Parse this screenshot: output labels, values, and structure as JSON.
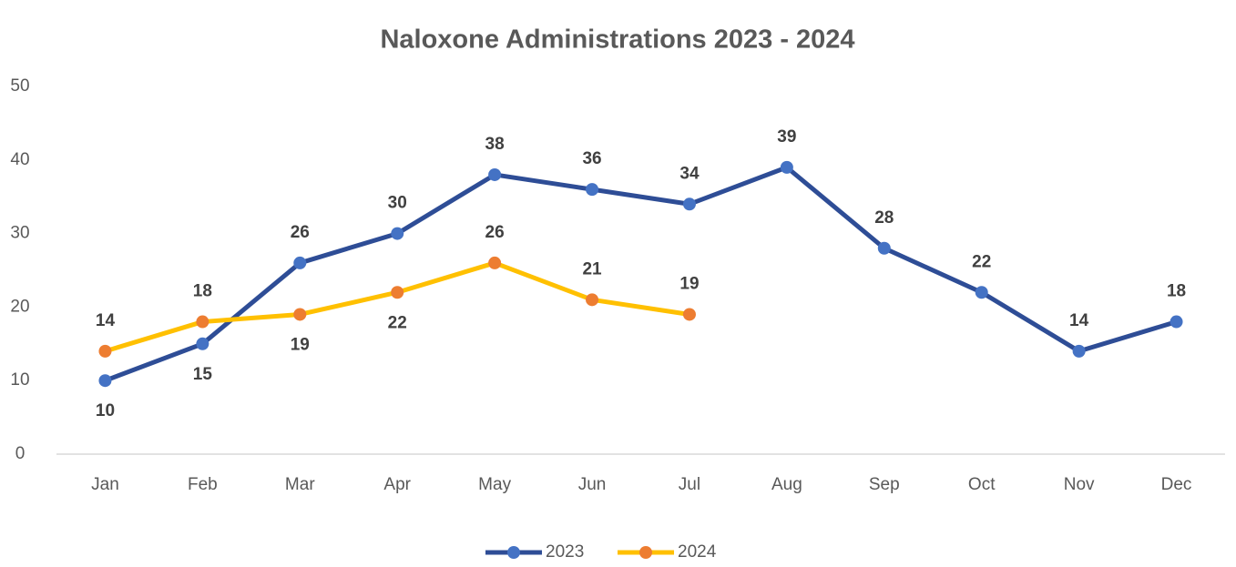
{
  "chart_data": {
    "type": "line",
    "title": "Naloxone Administrations 2023 - 2024",
    "categories": [
      "Jan",
      "Feb",
      "Mar",
      "Apr",
      "May",
      "Jun",
      "Jul",
      "Aug",
      "Sep",
      "Oct",
      "Nov",
      "Dec"
    ],
    "series": [
      {
        "name": "2023",
        "color": "#2e4d96",
        "marker_color": "#4472c4",
        "values": [
          10,
          15,
          26,
          30,
          38,
          36,
          34,
          39,
          28,
          22,
          14,
          18
        ]
      },
      {
        "name": "2024",
        "color": "#ffc000",
        "marker_color": "#ed7d31",
        "values": [
          14,
          18,
          19,
          22,
          26,
          21,
          19,
          null,
          null,
          null,
          null,
          null
        ]
      }
    ],
    "ylim": [
      0,
      50
    ],
    "yticks": [
      0,
      10,
      20,
      30,
      40,
      50
    ],
    "grid": false,
    "legend": "bottom"
  }
}
